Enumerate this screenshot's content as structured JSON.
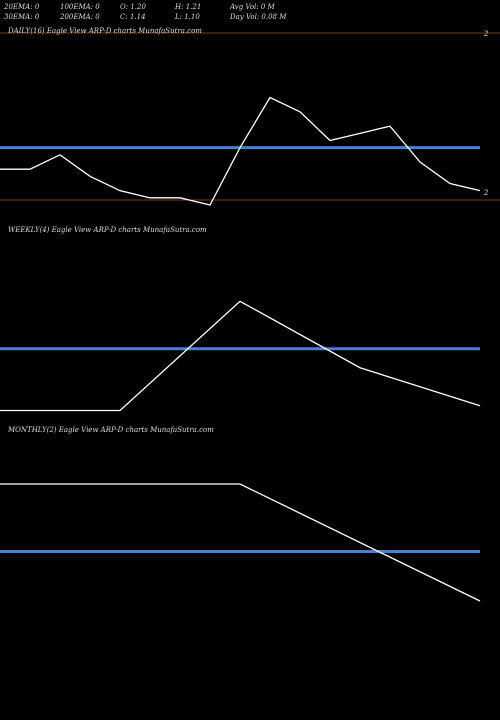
{
  "header": {
    "row1": [
      "20EMA: 0",
      "100EMA: 0",
      "O: 1.20",
      "H: 1.21",
      "Avg Vol: 0  M"
    ],
    "row2": [
      "30EMA: 0",
      "200EMA: 0",
      "C: 1.14",
      "L: 1.10",
      "Day Vol: 0.08 M"
    ],
    "right_labels": [
      "2",
      "2"
    ]
  },
  "chart_data": [
    {
      "type": "line",
      "title": "DAILY(16) Eagle   View  ARP-D charts MunafaSutra.com",
      "values": [
        1.13,
        1.13,
        1.15,
        1.12,
        1.1,
        1.09,
        1.09,
        1.08,
        1.16,
        1.23,
        1.21,
        1.17,
        1.18,
        1.19,
        1.14,
        1.11,
        1.1
      ],
      "level": 1.16,
      "ylim": [
        1.08,
        1.32
      ],
      "color": "#ffffff",
      "level_color": "#4a7fd4"
    },
    {
      "type": "line",
      "title": "WEEKLY(4) Eagle   View  ARP-D charts MunafaSutra.com",
      "values": [
        1.02,
        1.02,
        1.25,
        1.11,
        1.03
      ],
      "level": 1.15,
      "ylim": [
        1.0,
        1.4
      ],
      "color": "#ffffff",
      "level_color": "#4a7fd4"
    },
    {
      "type": "line",
      "title": "MONTHLY(2) Eagle   View  ARP-D charts MunafaSutra.com",
      "values": [
        1.28,
        1.28,
        1.02
      ],
      "level": 1.13,
      "ylim": [
        0.8,
        1.4
      ],
      "color": "#ffffff",
      "level_color": "#4a7fd4"
    }
  ]
}
